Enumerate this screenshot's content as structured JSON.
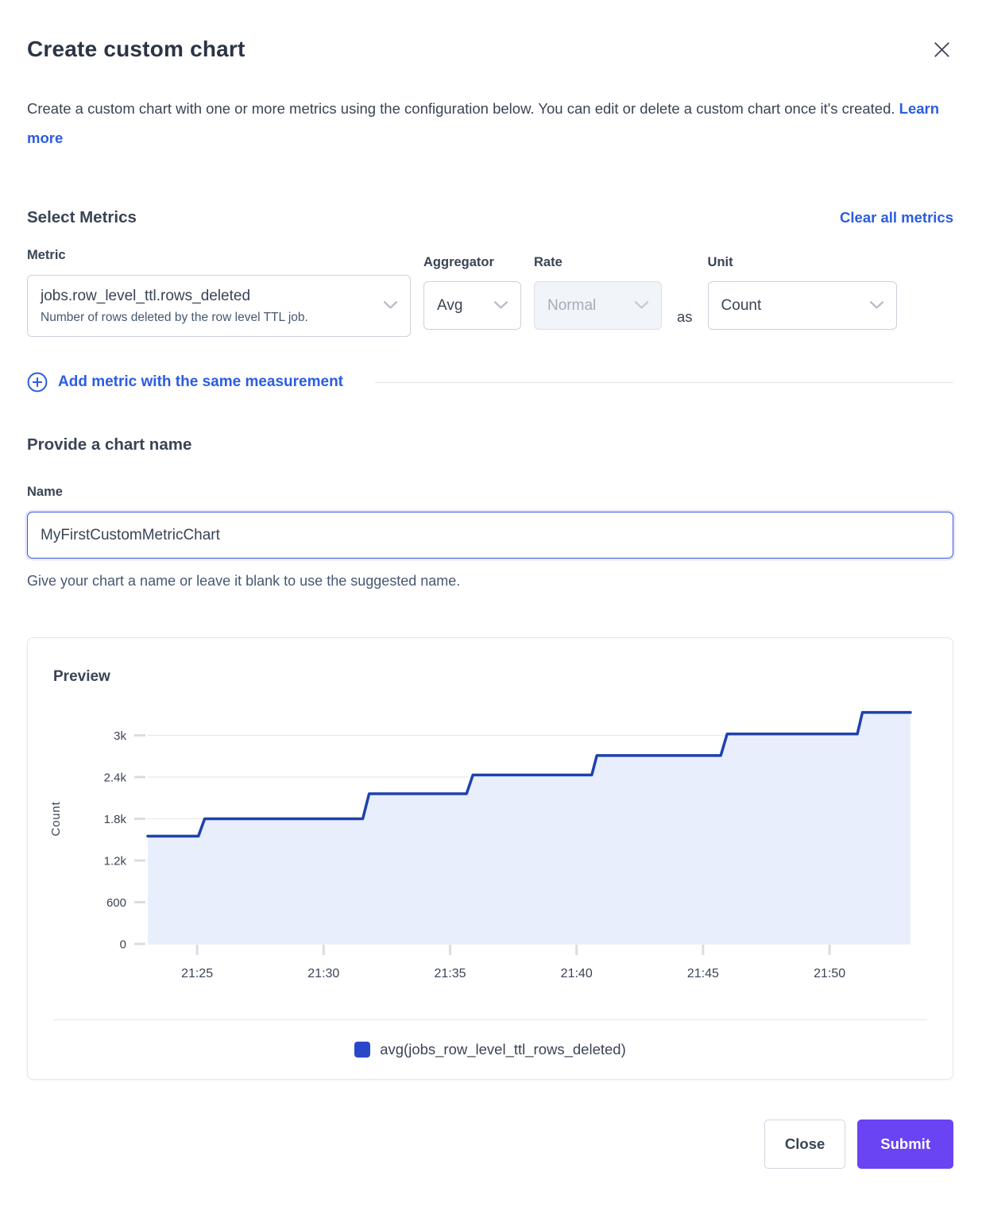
{
  "modal": {
    "title": "Create custom chart",
    "description": "Create a custom chart with one or more metrics using the configuration below. You can edit or delete a custom chart once it's created.",
    "learn_more_label": "Learn more"
  },
  "metrics_section": {
    "heading": "Select Metrics",
    "clear_all_label": "Clear all metrics",
    "metric": {
      "label": "Metric",
      "value": "jobs.row_level_ttl.rows_deleted",
      "description": "Number of rows deleted by the row level TTL job."
    },
    "aggregator": {
      "label": "Aggregator",
      "value": "Avg"
    },
    "rate": {
      "label": "Rate",
      "value": "Normal",
      "disabled": true
    },
    "as_label": "as",
    "unit": {
      "label": "Unit",
      "value": "Count"
    },
    "add_metric_label": "Add metric with the same measurement"
  },
  "name_section": {
    "heading": "Provide a chart name",
    "label": "Name",
    "value": "MyFirstCustomMetricChart",
    "helper": "Give your chart a name or leave it blank to use the suggested name."
  },
  "preview": {
    "heading": "Preview",
    "legend": {
      "label": "avg(jobs_row_level_ttl_rows_deleted)",
      "color": "#2749c9"
    }
  },
  "chart_data": {
    "type": "area",
    "subtype": "step-after",
    "ylabel": "Count",
    "grid": "horizontal",
    "legend_position": "bottom-center",
    "line_color": "#1f41ad",
    "fill_color": "#e8eefc",
    "x_domain_min": 23.05,
    "x_domain_max": 53.2,
    "x_domain_start_time": "21:23",
    "x_domain_end_time": "21:53",
    "y_max": 3600,
    "y_tick_step": 600,
    "y_ticks": [
      {
        "v": 0,
        "label": "0"
      },
      {
        "v": 600,
        "label": "600"
      },
      {
        "v": 1200,
        "label": "1.2k"
      },
      {
        "v": 1800,
        "label": "1.8k"
      },
      {
        "v": 2400,
        "label": "2.4k"
      },
      {
        "v": 3000,
        "label": "3k"
      }
    ],
    "x_ticks": [
      {
        "m": 25,
        "label": "21:25"
      },
      {
        "m": 30,
        "label": "21:30"
      },
      {
        "m": 35,
        "label": "21:35"
      },
      {
        "m": 40,
        "label": "21:40"
      },
      {
        "m": 45,
        "label": "21:45"
      },
      {
        "m": 50,
        "label": "21:50"
      }
    ],
    "series": [
      {
        "name": "avg(jobs_row_level_ttl_rows_deleted)",
        "points": [
          [
            23.05,
            1550
          ],
          [
            25.05,
            1550
          ],
          [
            25.3,
            1800
          ],
          [
            31.55,
            1800
          ],
          [
            31.8,
            2160
          ],
          [
            35.65,
            2160
          ],
          [
            35.9,
            2430
          ],
          [
            40.6,
            2430
          ],
          [
            40.8,
            2710
          ],
          [
            45.7,
            2710
          ],
          [
            45.95,
            3020
          ],
          [
            51.1,
            3020
          ],
          [
            51.3,
            3330
          ],
          [
            53.2,
            3330
          ]
        ]
      }
    ]
  },
  "footer": {
    "close_label": "Close",
    "submit_label": "Submit"
  }
}
